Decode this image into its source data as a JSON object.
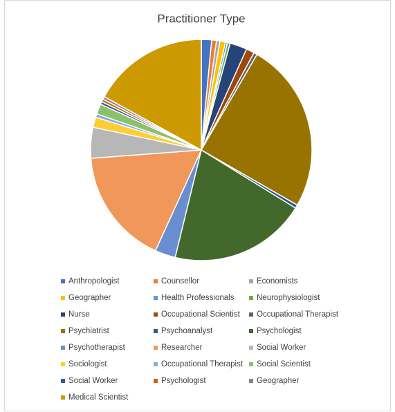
{
  "chart_data": {
    "type": "pie",
    "title": "Practitioner Type",
    "categories": [
      "Anthropologist",
      "Counsellor",
      "Economists",
      "Geographer",
      "Health Professionals",
      "Neurophysiologist",
      "Nurse",
      "Occupational Scientist",
      "Occupational Therapist",
      "Psychiatrist",
      "Psychoanalyst",
      "Psychologist",
      "Psychotherapist",
      "Researcher",
      "Social Worker",
      "Sociologist",
      "Occupational Therapist",
      "Social Scientist",
      "Social Worker",
      "Psychologist",
      "Geographer",
      "Medical Scientist"
    ],
    "values": [
      1.5,
      0.7,
      0.5,
      0.8,
      0.3,
      0.4,
      2.5,
      1.2,
      0.5,
      24.9,
      0.5,
      20,
      3,
      17,
      4.5,
      1.5,
      0.5,
      1.5,
      0.4,
      0.4,
      0.4,
      17
    ],
    "colors": [
      "#4472c4",
      "#ed7d31",
      "#a5a5a5",
      "#ffc000",
      "#5b9bd5",
      "#70ad47",
      "#264478",
      "#9e480e",
      "#636363",
      "#997300",
      "#255e91",
      "#43682b",
      "#698ed0",
      "#f1975a",
      "#b7b7b7",
      "#ffcd33",
      "#7cafdd",
      "#8cc168",
      "#335aa1",
      "#d26012",
      "#848484",
      "#cc9a00"
    ]
  }
}
